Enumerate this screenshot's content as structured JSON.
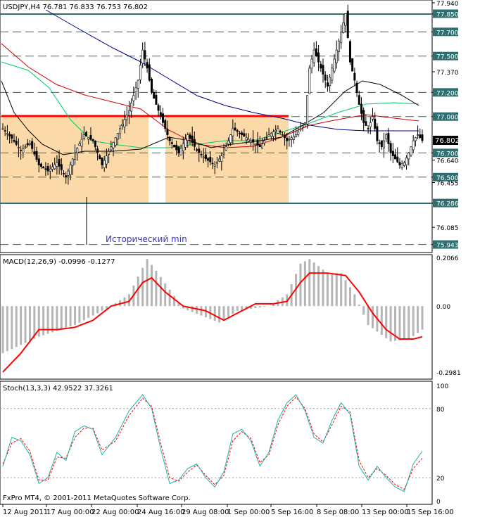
{
  "colors": {
    "background": "#ffffff",
    "border": "#000000",
    "level_line": "#2f6f6f",
    "zone_fill": "#fcd9a8",
    "resistance_red": "#ff0000",
    "ma_blue": "#00008b",
    "ma_red": "#cc0000",
    "ma_green": "#00cc66",
    "ma_black": "#000000",
    "macd_hist": "#b5b5b5",
    "macd_signal": "#ff0000",
    "stoch_main": "#20b2aa",
    "stoch_signal": "#ff0000",
    "annotation": "#3333cc",
    "price_box": "#000000",
    "price_box_text": "#ffffff"
  },
  "main_panel": {
    "header": "USDJPY,H4  76.781 76.833 76.753 76.802",
    "annotation": "Исторический min",
    "price_labels": [
      "77.940",
      "77.850",
      "77.700",
      "77.500",
      "77.370",
      "77.200",
      "77.000",
      "76.802",
      "76.700",
      "76.640",
      "76.500",
      "76.455",
      "76.286",
      "76.085",
      "75.943"
    ],
    "current_price": "76.802"
  },
  "macd_panel": {
    "header": "MACD(12,26,9) -0.0996 -0.1277",
    "labels": [
      "0.2066",
      "0.00",
      "-0.2981"
    ]
  },
  "stoch_panel": {
    "header": "Stoch(13,3,3) 42.9522 37.3261",
    "labels": [
      "100",
      "80",
      "20",
      "0"
    ],
    "copyright": "FxPro MT4, © 2001-2011 MetaQuotes Software Corp."
  },
  "x_axis_labels": [
    "12 Aug 2011",
    "17 Aug 00:00",
    "22 Aug 00:00",
    "24 Aug 16:00",
    "29 Aug 08:00",
    "1 Sep 00:00",
    "5 Sep 16:00",
    "8 Sep 08:00",
    "13 Sep 00:00",
    "15 Sep 16:00"
  ],
  "chart_data": {
    "type": "candlestick",
    "symbol": "USDJPY",
    "timeframe": "H4",
    "ohlc_last": {
      "open": 76.781,
      "high": 76.833,
      "low": 76.753,
      "close": 76.802
    },
    "ylim": [
      75.9,
      77.94
    ],
    "horizontal_levels": [
      77.85,
      77.7,
      77.5,
      77.2,
      77.0,
      76.7,
      76.5,
      76.286,
      75.943
    ],
    "historical_min": 75.943,
    "close_path": [
      [
        0,
        76.9
      ],
      [
        4,
        76.82
      ],
      [
        8,
        76.72
      ],
      [
        12,
        76.78
      ],
      [
        16,
        76.6
      ],
      [
        20,
        76.55
      ],
      [
        24,
        76.62
      ],
      [
        28,
        76.5
      ],
      [
        32,
        76.7
      ],
      [
        36,
        76.85
      ],
      [
        40,
        76.8
      ],
      [
        44,
        76.6
      ],
      [
        48,
        76.75
      ],
      [
        52,
        76.9
      ],
      [
        56,
        77.05
      ],
      [
        60,
        77.3
      ],
      [
        62,
        77.55
      ],
      [
        64,
        77.4
      ],
      [
        66,
        77.2
      ],
      [
        70,
        77.0
      ],
      [
        74,
        76.8
      ],
      [
        78,
        76.7
      ],
      [
        82,
        76.85
      ],
      [
        86,
        76.72
      ],
      [
        90,
        76.65
      ],
      [
        94,
        76.6
      ],
      [
        98,
        76.7
      ],
      [
        102,
        76.9
      ],
      [
        106,
        76.85
      ],
      [
        110,
        76.8
      ],
      [
        114,
        76.75
      ],
      [
        118,
        76.85
      ],
      [
        122,
        76.9
      ],
      [
        126,
        76.8
      ],
      [
        130,
        76.85
      ],
      [
        134,
        76.95
      ],
      [
        136,
        77.4
      ],
      [
        138,
        77.55
      ],
      [
        140,
        77.45
      ],
      [
        142,
        77.35
      ],
      [
        144,
        77.25
      ],
      [
        146,
        77.4
      ],
      [
        148,
        77.55
      ],
      [
        150,
        77.7
      ],
      [
        152,
        77.85
      ],
      [
        154,
        77.45
      ],
      [
        156,
        77.3
      ],
      [
        158,
        77.1
      ],
      [
        160,
        76.95
      ],
      [
        162,
        76.9
      ],
      [
        164,
        77.0
      ],
      [
        166,
        76.8
      ],
      [
        168,
        76.75
      ],
      [
        170,
        76.85
      ],
      [
        172,
        76.7
      ],
      [
        174,
        76.65
      ],
      [
        176,
        76.6
      ],
      [
        178,
        76.62
      ],
      [
        180,
        76.7
      ],
      [
        182,
        76.8
      ],
      [
        184,
        76.85
      ],
      [
        186,
        76.802
      ]
    ],
    "macd_histogram_path": [
      [
        0,
        -0.2
      ],
      [
        16,
        -0.13
      ],
      [
        32,
        -0.08
      ],
      [
        48,
        0.0
      ],
      [
        56,
        0.05
      ],
      [
        64,
        0.2
      ],
      [
        68,
        0.15
      ],
      [
        80,
        -0.01
      ],
      [
        96,
        -0.07
      ],
      [
        104,
        -0.02
      ],
      [
        118,
        0.0
      ],
      [
        126,
        0.05
      ],
      [
        132,
        0.18
      ],
      [
        136,
        0.2
      ],
      [
        144,
        0.14
      ],
      [
        150,
        0.14
      ],
      [
        156,
        0.05
      ],
      [
        162,
        -0.08
      ],
      [
        172,
        -0.15
      ],
      [
        180,
        -0.14
      ],
      [
        186,
        -0.1
      ]
    ],
    "macd_signal_path": [
      [
        0,
        -0.28
      ],
      [
        8,
        -0.2
      ],
      [
        16,
        -0.1
      ],
      [
        24,
        -0.1
      ],
      [
        32,
        -0.09
      ],
      [
        40,
        -0.06
      ],
      [
        48,
        0.0
      ],
      [
        56,
        0.02
      ],
      [
        62,
        0.1
      ],
      [
        66,
        0.12
      ],
      [
        72,
        0.06
      ],
      [
        80,
        0.0
      ],
      [
        90,
        -0.02
      ],
      [
        98,
        -0.06
      ],
      [
        106,
        -0.02
      ],
      [
        112,
        0.01
      ],
      [
        120,
        0.01
      ],
      [
        126,
        0.02
      ],
      [
        132,
        0.1
      ],
      [
        136,
        0.14
      ],
      [
        144,
        0.14
      ],
      [
        152,
        0.13
      ],
      [
        158,
        0.06
      ],
      [
        164,
        -0.03
      ],
      [
        170,
        -0.1
      ],
      [
        176,
        -0.14
      ],
      [
        182,
        -0.14
      ],
      [
        186,
        -0.13
      ]
    ],
    "macd_ylim": [
      -0.2981,
      0.2066
    ],
    "stoch_main_path": [
      [
        0,
        30
      ],
      [
        4,
        55
      ],
      [
        8,
        52
      ],
      [
        12,
        40
      ],
      [
        16,
        15
      ],
      [
        20,
        20
      ],
      [
        24,
        42
      ],
      [
        28,
        35
      ],
      [
        32,
        60
      ],
      [
        36,
        65
      ],
      [
        40,
        62
      ],
      [
        44,
        40
      ],
      [
        50,
        55
      ],
      [
        56,
        78
      ],
      [
        62,
        92
      ],
      [
        66,
        80
      ],
      [
        70,
        45
      ],
      [
        74,
        15
      ],
      [
        78,
        18
      ],
      [
        82,
        28
      ],
      [
        86,
        32
      ],
      [
        90,
        20
      ],
      [
        94,
        12
      ],
      [
        98,
        25
      ],
      [
        102,
        58
      ],
      [
        106,
        62
      ],
      [
        110,
        52
      ],
      [
        114,
        30
      ],
      [
        118,
        42
      ],
      [
        122,
        70
      ],
      [
        126,
        85
      ],
      [
        130,
        92
      ],
      [
        134,
        78
      ],
      [
        138,
        55
      ],
      [
        142,
        50
      ],
      [
        146,
        70
      ],
      [
        150,
        85
      ],
      [
        154,
        75
      ],
      [
        158,
        30
      ],
      [
        162,
        18
      ],
      [
        166,
        30
      ],
      [
        170,
        20
      ],
      [
        174,
        12
      ],
      [
        178,
        8
      ],
      [
        182,
        32
      ],
      [
        186,
        43
      ]
    ],
    "stoch_signal_path": [
      [
        0,
        32
      ],
      [
        4,
        50
      ],
      [
        8,
        54
      ],
      [
        12,
        43
      ],
      [
        16,
        18
      ],
      [
        20,
        18
      ],
      [
        24,
        38
      ],
      [
        28,
        37
      ],
      [
        32,
        55
      ],
      [
        36,
        63
      ],
      [
        40,
        63
      ],
      [
        44,
        44
      ],
      [
        50,
        52
      ],
      [
        56,
        74
      ],
      [
        62,
        89
      ],
      [
        66,
        82
      ],
      [
        70,
        50
      ],
      [
        74,
        20
      ],
      [
        78,
        17
      ],
      [
        82,
        25
      ],
      [
        86,
        31
      ],
      [
        90,
        22
      ],
      [
        94,
        14
      ],
      [
        98,
        22
      ],
      [
        102,
        52
      ],
      [
        106,
        60
      ],
      [
        110,
        54
      ],
      [
        114,
        33
      ],
      [
        118,
        40
      ],
      [
        122,
        66
      ],
      [
        126,
        82
      ],
      [
        130,
        90
      ],
      [
        134,
        80
      ],
      [
        138,
        58
      ],
      [
        142,
        51
      ],
      [
        146,
        66
      ],
      [
        150,
        82
      ],
      [
        154,
        77
      ],
      [
        158,
        35
      ],
      [
        162,
        20
      ],
      [
        166,
        28
      ],
      [
        170,
        22
      ],
      [
        174,
        14
      ],
      [
        178,
        10
      ],
      [
        182,
        28
      ],
      [
        186,
        37
      ]
    ],
    "stoch_levels": [
      80,
      20
    ],
    "stoch_ylim": [
      0,
      100
    ]
  }
}
